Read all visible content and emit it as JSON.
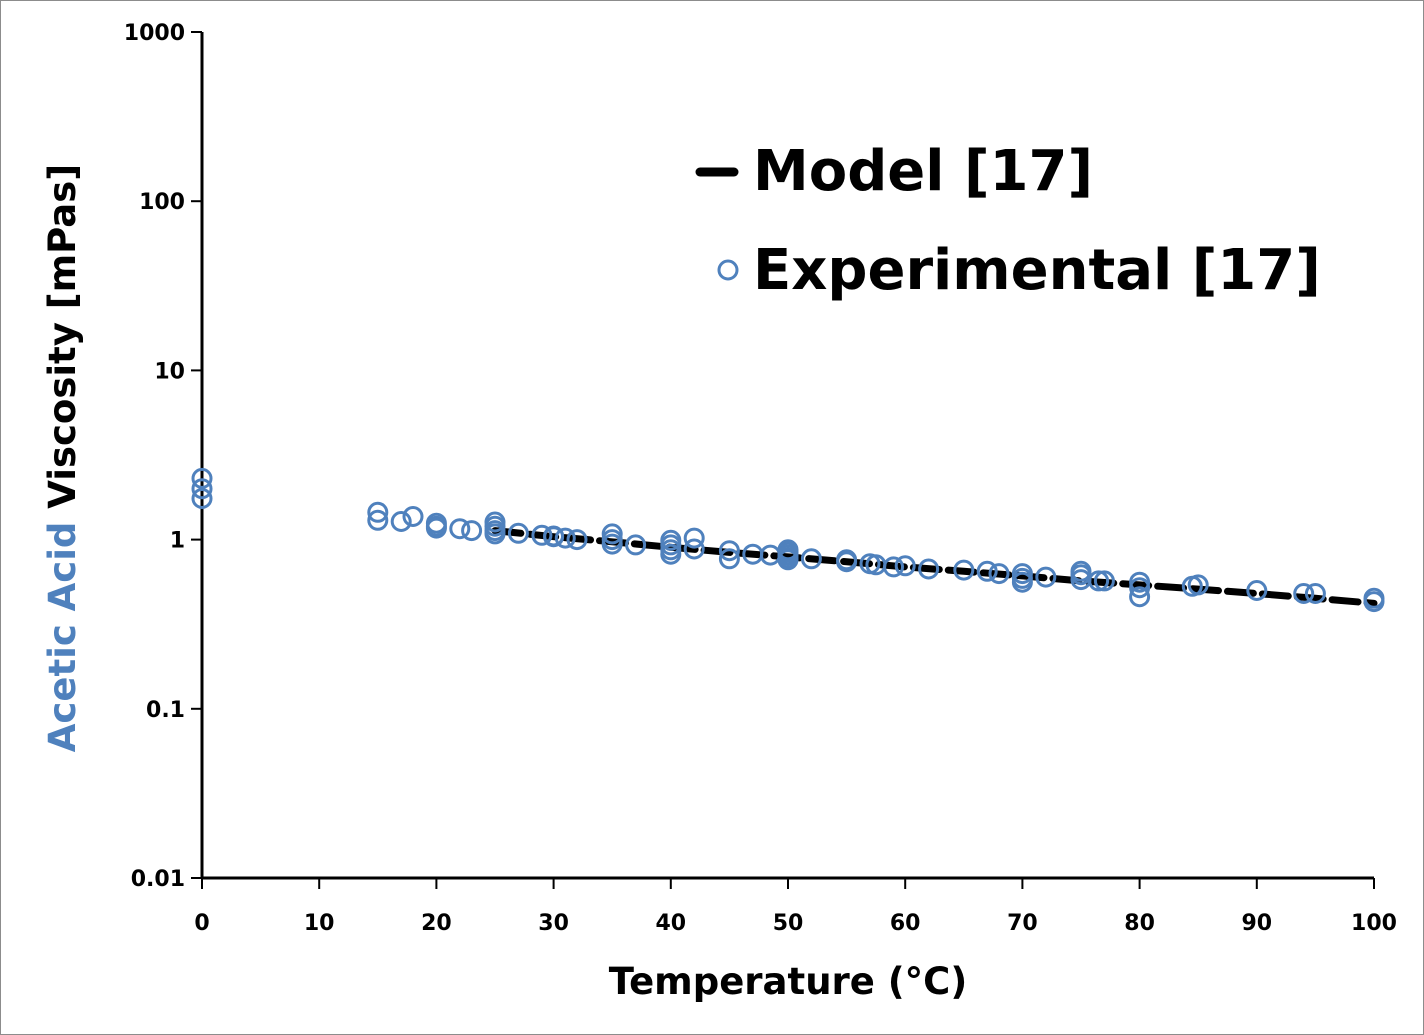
{
  "chart_data": {
    "type": "scatter",
    "xlabel": "Temperature (°C)",
    "ylabel_parts": [
      "Acetic Acid",
      " Viscosity [mPas]"
    ],
    "xlim": [
      0,
      100
    ],
    "ylim": [
      0.01,
      1000
    ],
    "y_scale": "log",
    "grid": false,
    "legend_position": "top-right",
    "x_ticks": [
      "0",
      "10",
      "20",
      "30",
      "40",
      "50",
      "60",
      "70",
      "80",
      "90",
      "100"
    ],
    "y_ticks": [
      "0.01",
      "0.1",
      "1",
      "10",
      "100",
      "1000"
    ],
    "colors": {
      "model": "#000000",
      "experimental": "#4f81bd",
      "ylabel_accent": "#4f81bd"
    },
    "series": [
      {
        "name": "Model [17]",
        "kind": "dashed-line",
        "x": [
          25,
          30,
          35,
          40,
          45,
          50,
          55,
          60,
          65,
          70,
          75,
          80,
          85,
          90,
          95,
          100
        ],
        "y": [
          1.13,
          1.04,
          0.97,
          0.9,
          0.84,
          0.79,
          0.74,
          0.69,
          0.65,
          0.61,
          0.57,
          0.54,
          0.51,
          0.48,
          0.45,
          0.42
        ]
      },
      {
        "name": "Experimental [17]",
        "kind": "open-circle",
        "x": [
          0,
          0,
          0,
          15,
          15,
          17,
          18,
          20,
          20,
          20,
          22,
          23,
          25,
          25,
          25,
          25,
          27,
          29,
          30,
          30,
          31,
          32,
          35,
          35,
          35,
          37,
          40,
          40,
          40,
          40,
          42,
          42,
          45,
          45,
          47,
          48.5,
          50,
          50,
          50,
          50,
          50,
          52,
          55,
          55,
          57,
          57.5,
          59,
          60,
          62,
          65,
          67,
          68,
          70,
          70,
          70,
          72,
          75,
          75,
          75,
          76.5,
          77,
          80,
          80,
          80,
          84.5,
          85,
          90,
          94,
          95,
          100,
          100
        ],
        "y": [
          2.3,
          2.0,
          1.75,
          1.45,
          1.3,
          1.28,
          1.37,
          1.25,
          1.2,
          1.17,
          1.16,
          1.13,
          1.27,
          1.2,
          1.13,
          1.08,
          1.09,
          1.06,
          1.05,
          1.04,
          1.02,
          1.0,
          1.08,
          1.0,
          0.94,
          0.93,
          0.99,
          0.93,
          0.87,
          0.82,
          1.02,
          0.88,
          0.86,
          0.77,
          0.82,
          0.81,
          0.87,
          0.84,
          0.81,
          0.78,
          0.76,
          0.77,
          0.76,
          0.74,
          0.72,
          0.71,
          0.69,
          0.7,
          0.67,
          0.66,
          0.65,
          0.63,
          0.63,
          0.59,
          0.56,
          0.6,
          0.65,
          0.62,
          0.58,
          0.57,
          0.57,
          0.56,
          0.52,
          0.46,
          0.53,
          0.54,
          0.5,
          0.48,
          0.48,
          0.45,
          0.43
        ]
      }
    ]
  }
}
